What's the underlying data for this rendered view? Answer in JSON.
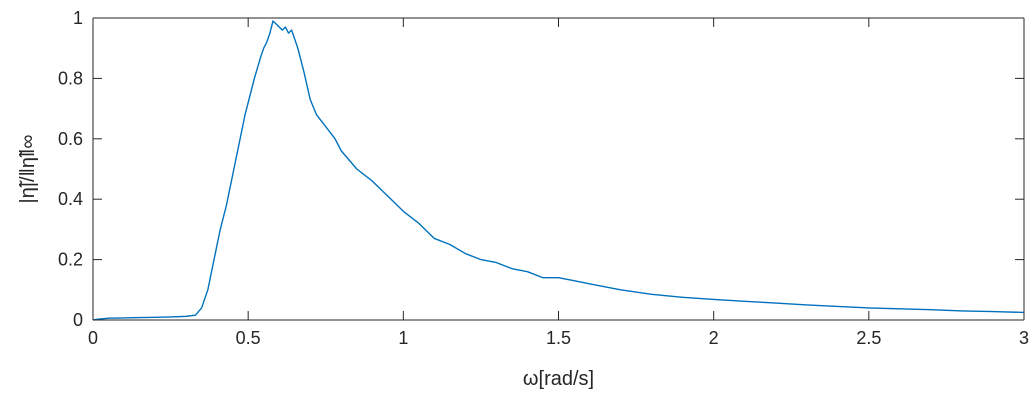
{
  "chart_data": {
    "type": "line",
    "title": "",
    "xlabel": "ω[rad/s]",
    "ylabel": "|η̃|/‖η̃‖∞",
    "xlim": [
      0,
      3
    ],
    "ylim": [
      0,
      1
    ],
    "xticks": [
      0,
      0.5,
      1,
      1.5,
      2,
      2.5,
      3
    ],
    "xtick_labels": [
      "0",
      "0.5",
      "1",
      "1.5",
      "2",
      "2.5",
      "3"
    ],
    "yticks": [
      0,
      0.2,
      0.4,
      0.6,
      0.8,
      1
    ],
    "ytick_labels": [
      "0",
      "0.2",
      "0.4",
      "0.6",
      "0.8",
      "1"
    ],
    "grid": false,
    "line_color": "#0072BD",
    "series": [
      {
        "x": [
          0,
          0.02,
          0.05,
          0.1,
          0.15,
          0.2,
          0.25,
          0.3,
          0.33,
          0.35,
          0.37,
          0.39,
          0.41,
          0.43,
          0.45,
          0.47,
          0.49,
          0.5,
          0.52,
          0.54,
          0.55,
          0.56,
          0.57,
          0.58,
          0.59,
          0.6,
          0.61,
          0.62,
          0.63,
          0.64,
          0.65,
          0.66,
          0.68,
          0.7,
          0.72,
          0.75,
          0.78,
          0.8,
          0.85,
          0.9,
          0.95,
          1.0,
          1.05,
          1.1,
          1.15,
          1.2,
          1.25,
          1.3,
          1.35,
          1.4,
          1.45,
          1.5,
          1.55,
          1.6,
          1.7,
          1.8,
          1.9,
          2.0,
          2.1,
          2.2,
          2.3,
          2.4,
          2.5,
          2.6,
          2.7,
          2.8,
          2.9,
          3.0
        ],
        "y": [
          0.0,
          0.003,
          0.006,
          0.007,
          0.008,
          0.009,
          0.01,
          0.012,
          0.016,
          0.04,
          0.1,
          0.2,
          0.3,
          0.38,
          0.48,
          0.58,
          0.68,
          0.72,
          0.8,
          0.87,
          0.9,
          0.92,
          0.95,
          0.99,
          0.98,
          0.97,
          0.96,
          0.97,
          0.95,
          0.96,
          0.93,
          0.9,
          0.82,
          0.73,
          0.68,
          0.64,
          0.6,
          0.56,
          0.5,
          0.46,
          0.41,
          0.36,
          0.32,
          0.27,
          0.25,
          0.22,
          0.2,
          0.19,
          0.17,
          0.16,
          0.14,
          0.14,
          0.13,
          0.12,
          0.1,
          0.085,
          0.075,
          0.068,
          0.062,
          0.056,
          0.05,
          0.045,
          0.04,
          0.037,
          0.034,
          0.03,
          0.028,
          0.025
        ]
      }
    ]
  }
}
